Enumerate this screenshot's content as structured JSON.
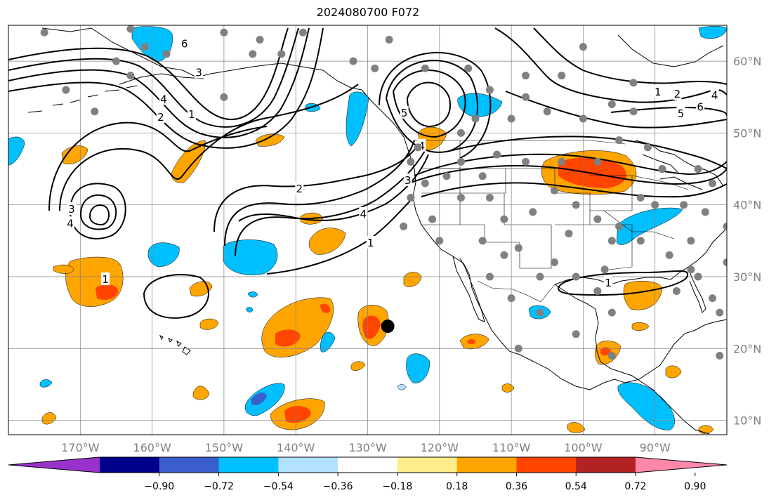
{
  "title": "2024080700 F072",
  "map": {
    "lon_range": [
      -180,
      -80
    ],
    "lat_range": [
      8,
      65
    ],
    "lon_ticks": [
      {
        "lon": -170,
        "label": "170°W"
      },
      {
        "lon": -160,
        "label": "160°W"
      },
      {
        "lon": -150,
        "label": "150°W"
      },
      {
        "lon": -140,
        "label": "140°W"
      },
      {
        "lon": -130,
        "label": "130°W"
      },
      {
        "lon": -120,
        "label": "120°W"
      },
      {
        "lon": -110,
        "label": "110°W"
      },
      {
        "lon": -100,
        "label": "100°W"
      },
      {
        "lon": -90,
        "label": "90°W"
      }
    ],
    "lat_ticks": [
      {
        "lat": 60,
        "label": "60°N"
      },
      {
        "lat": 50,
        "label": "50°N"
      },
      {
        "lat": 40,
        "label": "40°N"
      },
      {
        "lat": 30,
        "label": "30°N"
      },
      {
        "lat": 20,
        "label": "20°N"
      },
      {
        "lat": 10,
        "label": "10°N"
      }
    ],
    "marker": {
      "lon": -127.2,
      "lat": 23.1
    }
  },
  "colorbar": {
    "colors": [
      "#9932cc",
      "#00008b",
      "#3a5fcd",
      "#00bfff",
      "#b0e2ff",
      "#ffffff",
      "#ffec8b",
      "#ffa500",
      "#ff4500",
      "#b22222",
      "#ff88aa"
    ],
    "labels": [
      "−0.90",
      "−0.72",
      "−0.54",
      "−0.36",
      "−0.18",
      "0.18",
      "0.36",
      "0.54",
      "0.72",
      "0.90"
    ]
  },
  "contour_labels": [
    {
      "text": "6",
      "lon": -155.5,
      "lat": 62.5
    },
    {
      "text": "3",
      "lon": -153.5,
      "lat": 58.5
    },
    {
      "text": "4",
      "lon": -158.4,
      "lat": 54.8
    },
    {
      "text": "1",
      "lon": -154.5,
      "lat": 52.7
    },
    {
      "text": "2",
      "lon": -158.8,
      "lat": 52.3
    },
    {
      "text": "3",
      "lon": -171.2,
      "lat": 39.5
    },
    {
      "text": "4",
      "lon": -171.4,
      "lat": 37.5
    },
    {
      "text": "2",
      "lon": -139.5,
      "lat": 42.3
    },
    {
      "text": "4",
      "lon": -130.6,
      "lat": 38.8
    },
    {
      "text": "1",
      "lon": -129.6,
      "lat": 34.8
    },
    {
      "text": "3",
      "lon": -124.4,
      "lat": 43.5
    },
    {
      "text": "5",
      "lon": -124.9,
      "lat": 52.9
    },
    {
      "text": "4",
      "lon": -122.5,
      "lat": 48.3
    },
    {
      "text": "1",
      "lon": -166.5,
      "lat": 29.7
    },
    {
      "text": "1",
      "lon": -96.5,
      "lat": 29.2
    },
    {
      "text": "1",
      "lon": -89.6,
      "lat": 55.8
    },
    {
      "text": "2",
      "lon": -86.9,
      "lat": 55.5
    },
    {
      "text": "5",
      "lon": -86.4,
      "lat": 52.8
    },
    {
      "text": "6",
      "lon": -83.7,
      "lat": 53.7
    },
    {
      "text": "4",
      "lon": -81.7,
      "lat": 55.3
    }
  ],
  "stations": [
    [
      -175,
      64
    ],
    [
      -163,
      64.5
    ],
    [
      -165,
      60
    ],
    [
      -150,
      64
    ],
    [
      -145,
      63
    ],
    [
      -158,
      61
    ],
    [
      -146,
      61
    ],
    [
      -172,
      56
    ],
    [
      -163,
      58
    ],
    [
      -150,
      55
    ],
    [
      -142,
      61
    ],
    [
      -132,
      60
    ],
    [
      -129,
      59
    ],
    [
      -122,
      59
    ],
    [
      -116,
      59
    ],
    [
      -108,
      58
    ],
    [
      -103,
      58
    ],
    [
      -100,
      62
    ],
    [
      -93,
      57
    ],
    [
      -108,
      55
    ],
    [
      -105,
      53
    ],
    [
      -100,
      52
    ],
    [
      -96,
      54
    ],
    [
      -93,
      53
    ],
    [
      -110,
      52
    ],
    [
      -113,
      56
    ],
    [
      -115,
      52
    ],
    [
      -117,
      50
    ],
    [
      -123,
      48
    ],
    [
      -124,
      46
    ],
    [
      -122,
      43
    ],
    [
      -124,
      41
    ],
    [
      -125,
      37
    ],
    [
      -121,
      38
    ],
    [
      -117,
      41
    ],
    [
      -113,
      41
    ],
    [
      -111,
      38
    ],
    [
      -114,
      35
    ],
    [
      -109,
      34
    ],
    [
      -104,
      32
    ],
    [
      -102,
      36
    ],
    [
      -98,
      38
    ],
    [
      -96,
      35
    ],
    [
      -97,
      31
    ],
    [
      -95,
      37
    ],
    [
      -92,
      35
    ],
    [
      -88,
      33
    ],
    [
      -85,
      35
    ],
    [
      -85,
      31
    ],
    [
      -87,
      28
    ],
    [
      -84,
      30
    ],
    [
      -82,
      27
    ],
    [
      -81,
      25
    ],
    [
      -81,
      19
    ],
    [
      -90,
      40
    ],
    [
      -86,
      40
    ],
    [
      -83,
      39
    ],
    [
      -80,
      37
    ],
    [
      -80,
      32
    ],
    [
      -82,
      43
    ],
    [
      -84,
      45
    ],
    [
      -89,
      45
    ],
    [
      -91,
      48
    ],
    [
      -95,
      49
    ],
    [
      -103,
      46
    ],
    [
      -98,
      46
    ],
    [
      -108,
      46
    ],
    [
      -112,
      47
    ],
    [
      -104,
      42
    ],
    [
      -101,
      40
    ],
    [
      -107,
      39
    ],
    [
      -117,
      46
    ],
    [
      -114,
      44
    ],
    [
      -101,
      30
    ],
    [
      -98,
      28
    ],
    [
      -96,
      25
    ],
    [
      -101,
      22
    ],
    [
      -96,
      19
    ],
    [
      -106,
      25
    ],
    [
      -109,
      20
    ],
    [
      -120,
      35
    ],
    [
      -113,
      30
    ],
    [
      -110,
      27
    ],
    [
      -127,
      63
    ],
    [
      -139,
      64
    ],
    [
      -168,
      53
    ],
    [
      -161,
      62
    ],
    [
      -106,
      30
    ],
    [
      -92,
      41
    ],
    [
      -119,
      44
    ],
    [
      -111,
      33
    ]
  ]
}
